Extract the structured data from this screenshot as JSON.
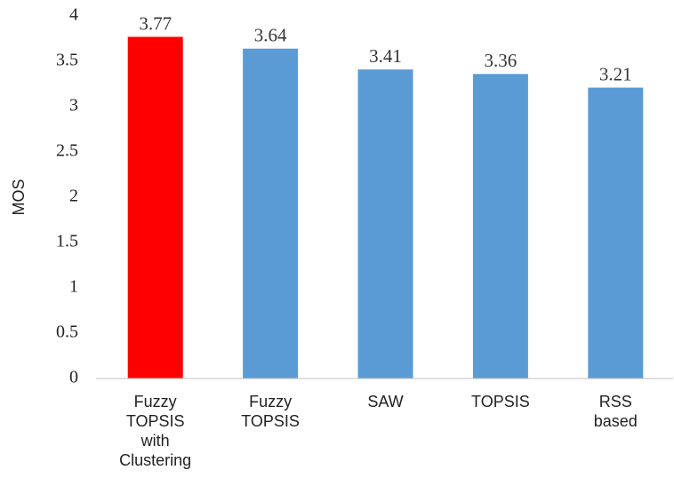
{
  "chart_data": {
    "type": "bar",
    "y_label": "MOS",
    "categories": [
      "Fuzzy TOPSIS with Clustering",
      "Fuzzy TOPSIS",
      "SAW",
      "TOPSIS",
      "RSS based"
    ],
    "values": [
      3.77,
      3.64,
      3.41,
      3.36,
      3.21
    ],
    "colors": [
      "#ff0000",
      "#5b9bd5",
      "#5b9bd5",
      "#5b9bd5",
      "#5b9bd5"
    ],
    "ylim": [
      0,
      4
    ],
    "yticks": [
      0,
      0.5,
      1,
      1.5,
      2,
      2.5,
      3,
      3.5,
      4
    ],
    "grid": false
  }
}
